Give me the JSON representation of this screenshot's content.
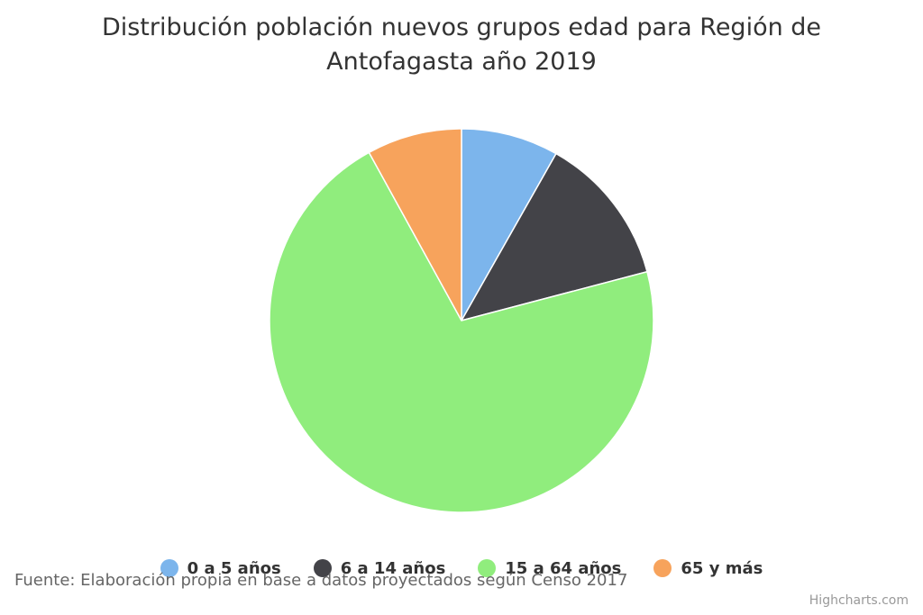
{
  "chart_data": {
    "type": "pie",
    "title": "Distribución población nuevos grupos edad para Región de Antofagasta año 2019",
    "categories": [
      "0 a 5 años",
      "6 a 14 años",
      "15 a 64 años",
      "65 y más"
    ],
    "values": [
      8.2,
      12.7,
      71.1,
      8.0
    ],
    "colors": [
      "#7cb5ec",
      "#434348",
      "#90ed7d",
      "#f7a35c"
    ],
    "legend_position": "bottom-center"
  },
  "source": "Fuente: Elaboración propia en base a datos proyectados según Censo 2017",
  "credits": "Highcharts.com"
}
